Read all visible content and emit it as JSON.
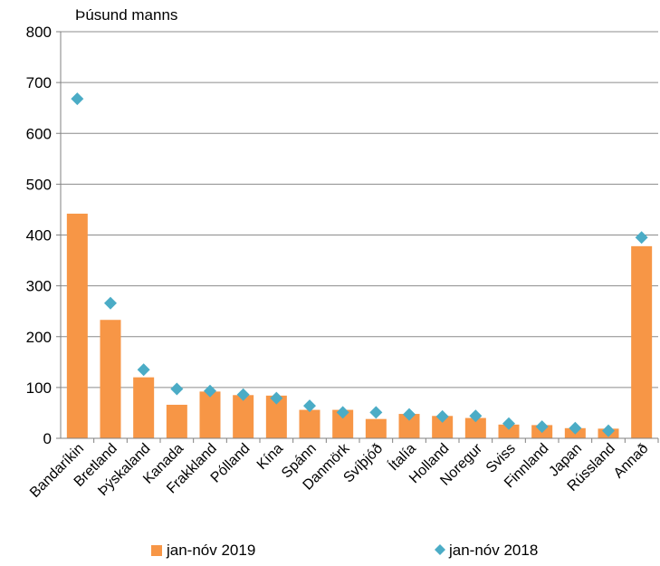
{
  "chart_data": {
    "type": "bar",
    "ylabel": "Þúsund manns",
    "ylim": [
      0,
      800
    ],
    "yticks": [
      0,
      100,
      200,
      300,
      400,
      500,
      600,
      700,
      800
    ],
    "grid": true,
    "legend_position": "bottom",
    "categories": [
      "Bandaríkin",
      "Bretland",
      "Þýskaland",
      "Kanada",
      "Frakkland",
      "Pólland",
      "Kína",
      "Spánn",
      "Danmörk",
      "Svíþjóð",
      "Ítalía",
      "Holland",
      "Noregur",
      "Sviss",
      "Finnland",
      "Japan",
      "Rússland",
      "Annað"
    ],
    "series": [
      {
        "name": "jan-nóv 2019",
        "type": "bar",
        "color": "#F79646",
        "values": [
          442,
          233,
          120,
          66,
          92,
          85,
          84,
          56,
          56,
          38,
          48,
          44,
          40,
          27,
          26,
          20,
          19,
          378
        ]
      },
      {
        "name": "jan-nóv 2018",
        "type": "scatter",
        "marker": "diamond",
        "color": "#4BACC6",
        "values": [
          668,
          266,
          135,
          97,
          93,
          86,
          79,
          64,
          51,
          51,
          47,
          43,
          44,
          29,
          23,
          20,
          15,
          395
        ]
      }
    ]
  }
}
